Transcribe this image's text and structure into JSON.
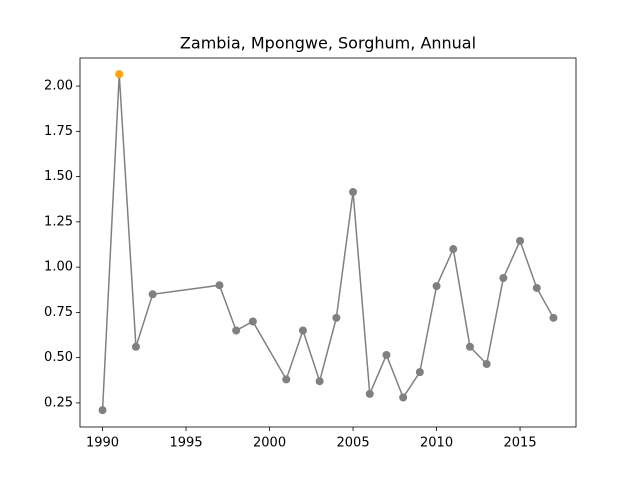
{
  "chart_data": {
    "type": "line",
    "title": "Zambia, Mpongwe, Sorghum, Annual",
    "x": [
      1990,
      1991,
      1992,
      1993,
      1997,
      1998,
      1999,
      2001,
      2002,
      2003,
      2004,
      2005,
      2006,
      2007,
      2008,
      2009,
      2010,
      2011,
      2012,
      2013,
      2014,
      2015,
      2016,
      2017
    ],
    "series": [
      {
        "name": "Sorghum",
        "color": "#808080",
        "values": [
          0.21,
          2.066,
          0.56,
          0.85,
          0.9,
          0.65,
          0.7,
          0.38,
          0.65,
          0.37,
          0.72,
          1.415,
          0.3,
          0.515,
          0.28,
          0.42,
          0.895,
          1.1,
          0.56,
          0.465,
          0.94,
          1.145,
          0.885,
          0.72
        ]
      }
    ],
    "highlight_color": "#ffa500",
    "xlim": [
      1988.65,
      2018.35
    ],
    "xticks": [
      1990,
      1995,
      2000,
      2005,
      2010,
      2015
    ],
    "ylim": [
      0.117,
      2.155
    ],
    "yticks": [
      0.25,
      {
        "value": 0.5,
        "label": "0.50"
      },
      0.75,
      {
        "value": 1.0,
        "label": "1.00"
      },
      1.25,
      {
        "value": 1.5,
        "label": "1.50"
      },
      1.75,
      {
        "value": 2.0,
        "label": "2.00"
      }
    ],
    "grid": false
  }
}
